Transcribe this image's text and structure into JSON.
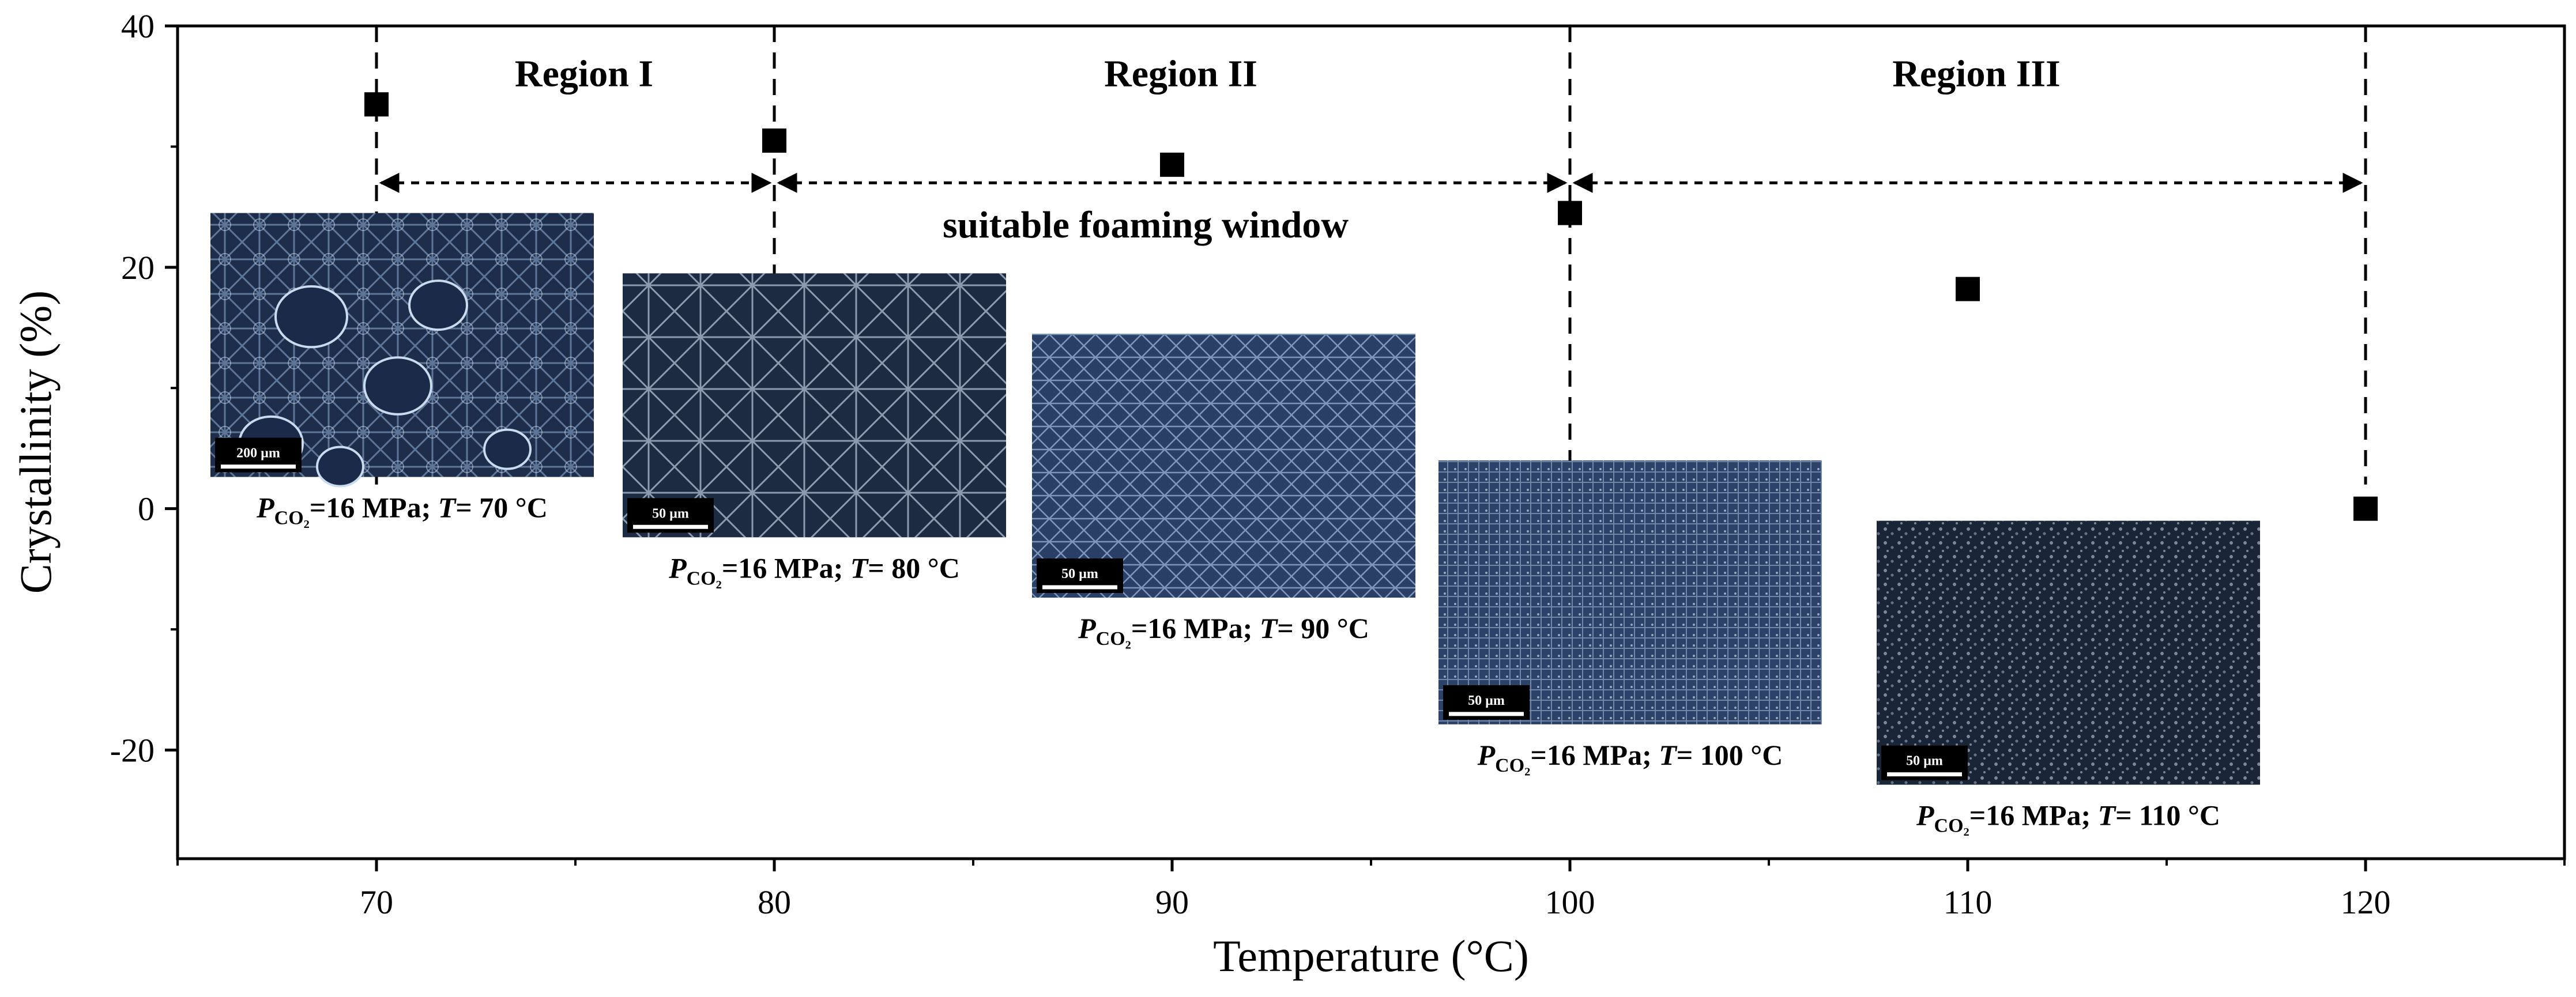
{
  "chart_data": {
    "type": "scatter",
    "title": "",
    "xlabel": "Temperature (°C)",
    "ylabel": "Crystallinity (%)",
    "xlim": [
      65,
      125
    ],
    "ylim": [
      -29,
      40
    ],
    "x_ticks": [
      70,
      80,
      90,
      100,
      110,
      120
    ],
    "y_ticks": [
      40,
      20,
      0,
      -20
    ],
    "grid": false,
    "legend": "none",
    "marker_color": "#000000",
    "series": [
      {
        "x": [
          70,
          80,
          90,
          100,
          110,
          120
        ],
        "y": [
          33.5,
          30.5,
          28.5,
          24.5,
          18.2,
          0.0
        ]
      }
    ],
    "guide_lines_x": [
      70,
      80,
      100,
      120
    ],
    "regions": [
      {
        "label": "Region I",
        "from": 70,
        "to": 80
      },
      {
        "label": "Region II",
        "from": 80,
        "to": 100
      },
      {
        "label": "Region III",
        "from": 100,
        "to": 120
      }
    ],
    "window_label": "suitable foaming window",
    "micrographs": [
      {
        "temperature": 70,
        "scale_bar": "200 µm",
        "caption_p": "P",
        "caption_sub": "CO₂",
        "caption_rest": "=16 MPa; ",
        "caption_t": "T",
        "caption_val": "= 70 °C",
        "tone": "#1e2e4a"
      },
      {
        "temperature": 80,
        "scale_bar": "50 µm",
        "caption_p": "P",
        "caption_sub": "CO₂",
        "caption_rest": "=16 MPa; ",
        "caption_t": "T",
        "caption_val": "= 80 °C",
        "tone": "#1c2a42"
      },
      {
        "temperature": 90,
        "scale_bar": "50 µm",
        "caption_p": "P",
        "caption_sub": "CO₂",
        "caption_rest": "=16 MPa; ",
        "caption_t": "T",
        "caption_val": "= 90 °C",
        "tone": "#2a3f66"
      },
      {
        "temperature": 100,
        "scale_bar": "50 µm",
        "caption_p": "P",
        "caption_sub": "CO₂",
        "caption_rest": "=16 MPa; ",
        "caption_t": "T",
        "caption_val": "= 100 °C",
        "tone": "#2c4268"
      },
      {
        "temperature": 110,
        "scale_bar": "50 µm",
        "caption_p": "P",
        "caption_sub": "CO₂",
        "caption_rest": "=16 MPa; ",
        "caption_t": "T",
        "caption_val": "= 110 °C",
        "tone": "#1a2638"
      }
    ]
  }
}
